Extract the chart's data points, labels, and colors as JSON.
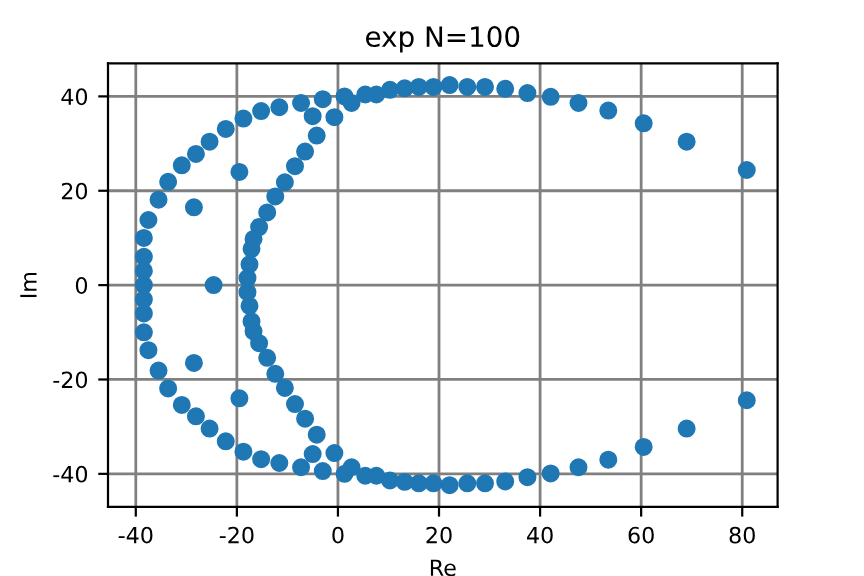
{
  "chart_data": {
    "type": "scatter",
    "title": "exp N=100",
    "xlabel": "Re",
    "ylabel": "Im",
    "x": [
      -38.4,
      -38.4,
      -38.4,
      -38.4,
      -37.5,
      -35.5,
      -33.6,
      -30.9,
      -28.1,
      -25.4,
      -22.2,
      -18.7,
      -15.2,
      -11.6,
      -7.3,
      -3.0,
      1.3,
      2.7,
      5.4,
      7.6,
      10.3,
      13.2,
      16.0,
      18.9,
      22.1,
      25.6,
      29.1,
      33.1,
      37.5,
      42.1,
      47.6,
      53.5,
      60.5,
      69.0,
      80.9,
      -0.7,
      -5.0,
      -4.2,
      -6.5,
      -8.5,
      -10.5,
      -12.4,
      -14.0,
      -15.6,
      -16.7,
      -17.1,
      -17.5,
      -17.9,
      -19.5,
      -28.5,
      -24.6,
      -38.4,
      -38.4,
      -38.4,
      -37.5,
      -35.5,
      -33.6,
      -30.9,
      -28.1,
      -25.4,
      -22.2,
      -18.7,
      -15.2,
      -11.6,
      -7.3,
      -3.0,
      1.3,
      2.7,
      5.4,
      7.6,
      10.3,
      13.2,
      16.0,
      18.9,
      22.1,
      25.6,
      29.1,
      33.1,
      37.5,
      42.1,
      47.6,
      53.5,
      60.5,
      69.0,
      80.9,
      -0.7,
      -5.0,
      -4.2,
      -6.5,
      -8.5,
      -10.5,
      -12.4,
      -14.0,
      -15.6,
      -16.7,
      -17.1,
      -17.5,
      -17.9,
      -19.5,
      -28.5
    ],
    "values": [
      0,
      10,
      6,
      3,
      13.8,
      18.1,
      21.9,
      25.4,
      27.8,
      30.4,
      33.1,
      35.3,
      36.9,
      37.7,
      38.6,
      39.4,
      40.0,
      38.6,
      40.4,
      40.4,
      41.4,
      41.7,
      42.0,
      42.0,
      42.4,
      42.0,
      42.0,
      41.6,
      40.7,
      39.9,
      38.6,
      37.0,
      34.3,
      30.4,
      24.4,
      35.6,
      35.8,
      31.7,
      28.3,
      25.2,
      21.8,
      18.8,
      15.4,
      12.3,
      9.8,
      7.7,
      4.4,
      1.5,
      24.0,
      16.5,
      0,
      -10,
      -6,
      -3,
      -13.8,
      -18.1,
      -21.9,
      -25.4,
      -27.8,
      -30.4,
      -33.1,
      -35.3,
      -36.9,
      -37.7,
      -38.6,
      -39.4,
      -40.0,
      -38.6,
      -40.4,
      -40.4,
      -41.4,
      -41.7,
      -42.0,
      -42.0,
      -42.4,
      -42.0,
      -42.0,
      -41.6,
      -40.7,
      -39.9,
      -38.6,
      -37.0,
      -34.3,
      -30.4,
      -24.4,
      -35.6,
      -35.8,
      -31.7,
      -28.3,
      -25.2,
      -21.8,
      -18.8,
      -15.4,
      -12.3,
      -9.8,
      -7.7,
      -4.4,
      -1.5,
      -24.0,
      -16.5
    ],
    "color": "#1f77b4",
    "marker": "circle",
    "xlim": [
      -45.5,
      87
    ],
    "ylim": [
      -47,
      47
    ],
    "xticks": [
      -40,
      -20,
      0,
      20,
      40,
      60,
      80
    ],
    "yticks": [
      -40,
      -20,
      0,
      20,
      40
    ],
    "grid": true
  }
}
